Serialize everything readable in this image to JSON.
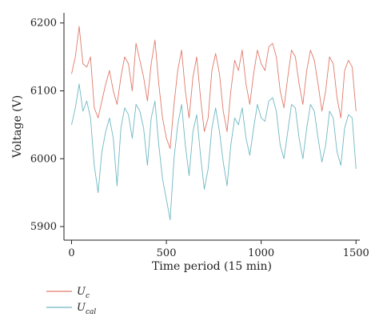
{
  "chart_data": {
    "type": "line",
    "xlabel": "Time period (15 min)",
    "ylabel": "Voltage (V)",
    "xlim": [
      -40,
      1520
    ],
    "ylim": [
      5880,
      6215
    ],
    "xticks": [
      0,
      500,
      1000,
      1500
    ],
    "yticks": [
      5900,
      6000,
      6100,
      6200
    ],
    "grid": false,
    "legend_position": "bottom-left",
    "series": [
      {
        "name": "U_c",
        "legend_main": "U",
        "legend_sub": "c",
        "color": "#e07a6b",
        "x": [
          0,
          20,
          40,
          60,
          80,
          100,
          120,
          140,
          160,
          180,
          200,
          220,
          240,
          260,
          280,
          300,
          320,
          340,
          360,
          380,
          400,
          420,
          440,
          460,
          480,
          500,
          520,
          540,
          560,
          580,
          600,
          620,
          640,
          660,
          680,
          700,
          720,
          740,
          760,
          780,
          800,
          820,
          840,
          860,
          880,
          900,
          920,
          940,
          960,
          980,
          1000,
          1020,
          1040,
          1060,
          1080,
          1100,
          1120,
          1140,
          1160,
          1180,
          1200,
          1220,
          1240,
          1260,
          1280,
          1300,
          1320,
          1340,
          1360,
          1380,
          1400,
          1420,
          1440,
          1460,
          1480,
          1500
        ],
        "y": [
          6125,
          6150,
          6195,
          6140,
          6135,
          6150,
          6075,
          6060,
          6085,
          6110,
          6130,
          6100,
          6080,
          6120,
          6150,
          6140,
          6100,
          6170,
          6145,
          6120,
          6085,
          6140,
          6175,
          6110,
          6060,
          6030,
          6015,
          6080,
          6130,
          6160,
          6100,
          6060,
          6120,
          6150,
          6090,
          6040,
          6060,
          6130,
          6155,
          6125,
          6070,
          6040,
          6100,
          6145,
          6130,
          6160,
          6110,
          6080,
          6125,
          6160,
          6140,
          6130,
          6165,
          6170,
          6150,
          6100,
          6075,
          6120,
          6160,
          6150,
          6110,
          6080,
          6130,
          6160,
          6145,
          6110,
          6070,
          6100,
          6150,
          6140,
          6090,
          6060,
          6130,
          6145,
          6135,
          6070
        ]
      },
      {
        "name": "U_cal",
        "legend_main": "U",
        "legend_sub": "cal",
        "color": "#6fb8c2",
        "x": [
          0,
          20,
          40,
          60,
          80,
          100,
          120,
          140,
          160,
          180,
          200,
          220,
          240,
          260,
          280,
          300,
          320,
          340,
          360,
          380,
          400,
          420,
          440,
          460,
          480,
          500,
          520,
          540,
          560,
          580,
          600,
          620,
          640,
          660,
          680,
          700,
          720,
          740,
          760,
          780,
          800,
          820,
          840,
          860,
          880,
          900,
          920,
          940,
          960,
          980,
          1000,
          1020,
          1040,
          1060,
          1080,
          1100,
          1120,
          1140,
          1160,
          1180,
          1200,
          1220,
          1240,
          1260,
          1280,
          1300,
          1320,
          1340,
          1360,
          1380,
          1400,
          1420,
          1440,
          1460,
          1480,
          1500
        ],
        "y": [
          6050,
          6075,
          6110,
          6070,
          6085,
          6060,
          5990,
          5950,
          6010,
          6040,
          6060,
          6030,
          5960,
          6045,
          6075,
          6065,
          6030,
          6080,
          6070,
          6045,
          5990,
          6060,
          6085,
          6020,
          5970,
          5940,
          5910,
          6000,
          6050,
          6080,
          6020,
          5975,
          6040,
          6065,
          6005,
          5955,
          5985,
          6045,
          6075,
          6040,
          5995,
          5960,
          6020,
          6060,
          6050,
          6075,
          6030,
          6005,
          6045,
          6080,
          6060,
          6055,
          6085,
          6090,
          6070,
          6020,
          6000,
          6040,
          6080,
          6075,
          6030,
          6000,
          6045,
          6080,
          6070,
          6030,
          5995,
          6020,
          6070,
          6060,
          6010,
          5990,
          6045,
          6065,
          6060,
          5985
        ]
      }
    ]
  }
}
